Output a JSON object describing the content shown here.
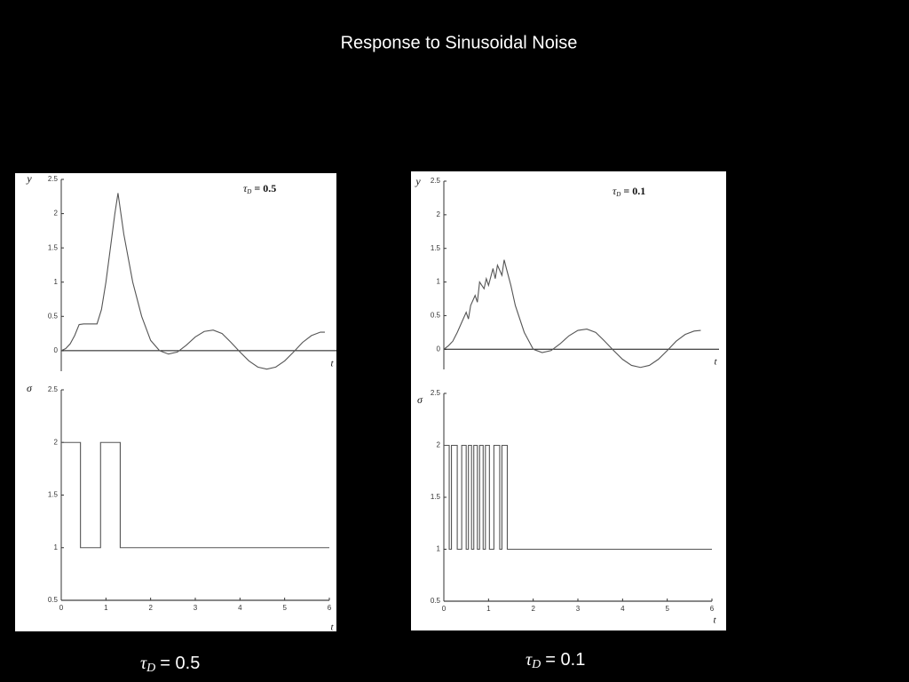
{
  "title": "Response to Sinusoidal Noise",
  "captions": [
    {
      "symbol": "τ",
      "subscript": "D",
      "text": "= 0.5"
    },
    {
      "symbol": "τ",
      "subscript": "D",
      "text": "= 0.1"
    }
  ],
  "chart_data": [
    {
      "type": "line",
      "ylabel": "y",
      "xlabel": "t",
      "annotation": {
        "symbol": "τ",
        "subscript": "D",
        "text": "= 0.5"
      },
      "xlim": [
        0,
        6
      ],
      "ylim": [
        -0.3,
        2.5
      ],
      "yticks": [
        0,
        0.5,
        1,
        1.5,
        2,
        2.5
      ],
      "color": "#555555",
      "x": [
        0,
        0.1,
        0.2,
        0.3,
        0.4,
        0.5,
        0.6,
        0.7,
        0.8,
        0.9,
        1.0,
        1.1,
        1.2,
        1.27,
        1.4,
        1.6,
        1.8,
        2.0,
        2.2,
        2.4,
        2.6,
        2.8,
        3.0,
        3.2,
        3.4,
        3.6,
        3.8,
        4.0,
        4.2,
        4.4,
        4.6,
        4.8,
        5.0,
        5.2,
        5.4,
        5.6,
        5.8,
        5.9
      ],
      "values": [
        0,
        0.03,
        0.1,
        0.22,
        0.38,
        0.39,
        0.39,
        0.39,
        0.39,
        0.6,
        1.0,
        1.5,
        2.0,
        2.3,
        1.7,
        1.0,
        0.5,
        0.15,
        0.0,
        -0.05,
        -0.02,
        0.08,
        0.2,
        0.28,
        0.3,
        0.25,
        0.12,
        -0.02,
        -0.15,
        -0.24,
        -0.27,
        -0.24,
        -0.15,
        -0.02,
        0.12,
        0.22,
        0.27,
        0.27
      ]
    },
    {
      "type": "line",
      "ylabel": "σ",
      "xlabel": "t",
      "xlim": [
        0,
        6
      ],
      "xticks": [
        0,
        1,
        2,
        3,
        4,
        5,
        6
      ],
      "ylim": [
        0.5,
        2.5
      ],
      "yticks": [
        0.5,
        1,
        1.5,
        2,
        2.5
      ],
      "color": "#555555",
      "x": [
        0,
        0.43,
        0.43,
        0.88,
        0.88,
        1.32,
        1.32,
        6
      ],
      "values": [
        2,
        2,
        1,
        1,
        2,
        2,
        1,
        1
      ]
    },
    {
      "type": "line",
      "ylabel": "y",
      "xlabel": "t",
      "annotation": {
        "symbol": "τ",
        "subscript": "D",
        "text": "= 0.1"
      },
      "xlim": [
        0,
        6
      ],
      "ylim": [
        -0.3,
        2.5
      ],
      "yticks": [
        0,
        0.5,
        1,
        1.5,
        2,
        2.5
      ],
      "color": "#555555",
      "x": [
        0,
        0.1,
        0.2,
        0.3,
        0.4,
        0.5,
        0.55,
        0.6,
        0.7,
        0.75,
        0.8,
        0.9,
        0.95,
        1.0,
        1.1,
        1.15,
        1.2,
        1.3,
        1.35,
        1.4,
        1.5,
        1.6,
        1.8,
        2.0,
        2.2,
        2.4,
        2.6,
        2.8,
        3.0,
        3.2,
        3.4,
        3.6,
        3.8,
        4.0,
        4.2,
        4.4,
        4.6,
        4.8,
        5.0,
        5.2,
        5.4,
        5.6,
        5.75
      ],
      "values": [
        0,
        0.05,
        0.12,
        0.25,
        0.4,
        0.55,
        0.45,
        0.65,
        0.8,
        0.7,
        1.0,
        0.9,
        1.05,
        0.95,
        1.2,
        1.05,
        1.25,
        1.1,
        1.33,
        1.2,
        0.95,
        0.65,
        0.25,
        0.0,
        -0.05,
        -0.02,
        0.08,
        0.2,
        0.28,
        0.3,
        0.25,
        0.12,
        -0.02,
        -0.15,
        -0.24,
        -0.27,
        -0.24,
        -0.15,
        -0.02,
        0.12,
        0.22,
        0.27,
        0.28
      ]
    },
    {
      "type": "line",
      "ylabel": "σ",
      "xlabel": "t",
      "xlim": [
        0,
        6
      ],
      "xticks": [
        0,
        1,
        2,
        3,
        4,
        5,
        6
      ],
      "ylim": [
        0.5,
        2.5
      ],
      "yticks": [
        0.5,
        1,
        1.5,
        2,
        2.5
      ],
      "color": "#555555",
      "x": [
        0,
        0.12,
        0.12,
        0.17,
        0.17,
        0.3,
        0.3,
        0.4,
        0.4,
        0.5,
        0.5,
        0.55,
        0.55,
        0.62,
        0.62,
        0.67,
        0.67,
        0.75,
        0.75,
        0.8,
        0.8,
        0.88,
        0.88,
        0.93,
        0.93,
        1.02,
        1.02,
        1.12,
        1.12,
        1.25,
        1.25,
        1.3,
        1.3,
        1.42,
        1.42,
        6
      ],
      "values": [
        2,
        2,
        1,
        1,
        2,
        2,
        1,
        1,
        2,
        2,
        1,
        1,
        2,
        2,
        1,
        1,
        2,
        2,
        1,
        1,
        2,
        2,
        1,
        1,
        2,
        2,
        1,
        1,
        2,
        2,
        1,
        1,
        2,
        2,
        1,
        1
      ]
    }
  ]
}
